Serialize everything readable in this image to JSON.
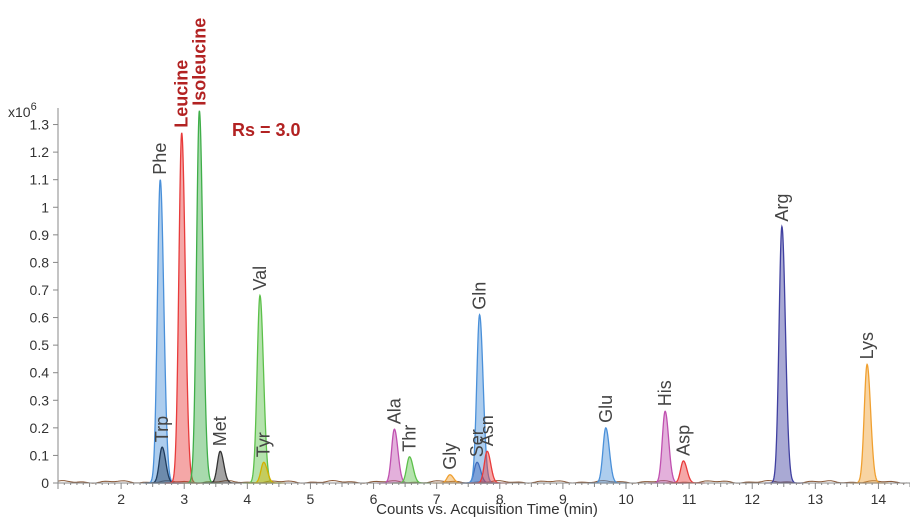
{
  "chart_data": {
    "type": "area",
    "title": "",
    "xlabel": "Counts vs. Acquisition Time (min)",
    "ylabel": "",
    "y_multiplier_label": "x10",
    "y_multiplier_exp": "6",
    "xlim": [
      1.0,
      14.5
    ],
    "ylim": [
      0,
      1.36
    ],
    "x_ticks": [
      2,
      3,
      4,
      5,
      6,
      7,
      8,
      9,
      10,
      11,
      12,
      13,
      14
    ],
    "y_ticks": [
      0,
      0.1,
      0.2,
      0.3,
      0.4,
      0.5,
      0.6,
      0.7,
      0.8,
      0.9,
      1,
      1.1,
      1.2,
      1.3
    ],
    "y_tick_labels": [
      "0",
      "0.1",
      "0.2",
      "0.3",
      "0.4",
      "0.5",
      "0.6",
      "0.7",
      "0.8",
      "0.9",
      "1",
      "1.1",
      "1.2",
      "1.3"
    ],
    "annotation": "Rs = 3.0",
    "series": [
      {
        "name": "Phe",
        "rt": 2.62,
        "height": 1.1,
        "color": "#4a90d9",
        "highlight": false
      },
      {
        "name": "Trp",
        "rt": 2.65,
        "height": 0.13,
        "color": "#1f3b5c",
        "highlight": false
      },
      {
        "name": "Leucine",
        "rt": 2.96,
        "height": 1.27,
        "color": "#e83b3b",
        "highlight": true
      },
      {
        "name": "Isoleucine",
        "rt": 3.24,
        "height": 1.35,
        "color": "#3fae49",
        "highlight": true
      },
      {
        "name": "Met",
        "rt": 3.57,
        "height": 0.115,
        "color": "#333333",
        "highlight": false
      },
      {
        "name": "Val",
        "rt": 4.2,
        "height": 0.68,
        "color": "#5cc04a",
        "highlight": false
      },
      {
        "name": "Tyr",
        "rt": 4.26,
        "height": 0.075,
        "color": "#d4b000",
        "highlight": false
      },
      {
        "name": "Ala",
        "rt": 6.33,
        "height": 0.195,
        "color": "#c050b0",
        "highlight": false
      },
      {
        "name": "Thr",
        "rt": 6.57,
        "height": 0.095,
        "color": "#5cc04a",
        "highlight": false
      },
      {
        "name": "Gly",
        "rt": 7.21,
        "height": 0.03,
        "color": "#f0a030",
        "highlight": false
      },
      {
        "name": "Ser",
        "rt": 7.64,
        "height": 0.075,
        "color": "#3a4fa8",
        "highlight": false
      },
      {
        "name": "Gln",
        "rt": 7.68,
        "height": 0.61,
        "color": "#4a90d9",
        "highlight": false
      },
      {
        "name": "Asn",
        "rt": 7.8,
        "height": 0.115,
        "color": "#e83b3b",
        "highlight": false
      },
      {
        "name": "Glu",
        "rt": 9.68,
        "height": 0.2,
        "color": "#4a90d9",
        "highlight": false
      },
      {
        "name": "His",
        "rt": 10.62,
        "height": 0.26,
        "color": "#c050b0",
        "highlight": false
      },
      {
        "name": "Asp",
        "rt": 10.91,
        "height": 0.08,
        "color": "#e83b3b",
        "highlight": false
      },
      {
        "name": "Arg",
        "rt": 12.47,
        "height": 0.93,
        "color": "#4040a0",
        "highlight": false
      },
      {
        "name": "Lys",
        "rt": 13.82,
        "height": 0.43,
        "color": "#f0a030",
        "highlight": false
      }
    ]
  }
}
